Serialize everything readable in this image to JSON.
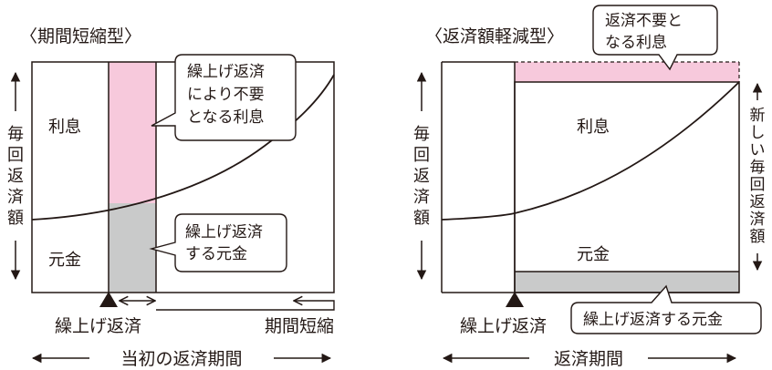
{
  "left": {
    "title": "〈期間短縮型〉",
    "vertical_label": [
      "毎",
      "回",
      "返",
      "済",
      "額"
    ],
    "label_interest": "利息",
    "label_principal": "元金",
    "callout_interest": [
      "繰上げ返済",
      "により不要",
      "となる利息"
    ],
    "callout_principal": [
      "繰上げ返済",
      "する元金"
    ],
    "label_prepay": "繰上げ返済",
    "label_shorten": "期間短縮",
    "bottom_label": "当初の返済期間"
  },
  "right": {
    "title": "〈返済額軽減型〉",
    "vertical_label_left": [
      "毎",
      "回",
      "返",
      "済",
      "額"
    ],
    "vertical_label_right": [
      "新",
      "し",
      "い",
      "毎",
      "回",
      "返",
      "済",
      "額"
    ],
    "label_interest": "利息",
    "label_principal": "元金",
    "callout_interest": [
      "返済不要と",
      "なる利息"
    ],
    "callout_principal": "繰上げ返済する元金",
    "label_prepay": "繰上げ返済",
    "bottom_label": "返済期間"
  },
  "colors": {
    "pink": "#f7c9dc",
    "gray": "#c9caca",
    "line": "#231815"
  }
}
